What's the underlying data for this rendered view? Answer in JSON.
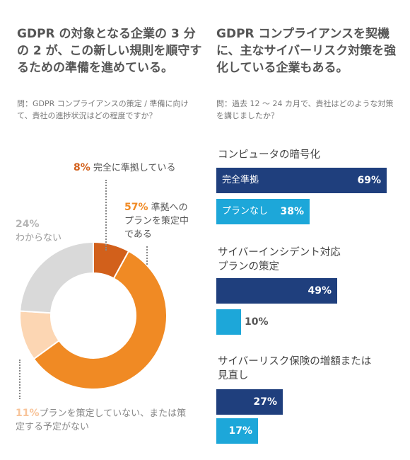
{
  "left": {
    "headline": "GDPR の対象となる企業の 3 分の 2 が、この新しい規則を順守するための準備を進めている。",
    "question": "問：GDPR コンプライアンスの策定 / 準備に向けて、貴社の進捗状況はどの程度ですか？"
  },
  "right": {
    "headline": "GDPR コンプライアンスを契機に、主なサイバーリスク対策を強化している企業もある。",
    "question": "問：過去 12 ～ 24 カ月で、貴社はどのような対策を講じましたか？"
  },
  "chart_data": [
    {
      "type": "pie",
      "title": "",
      "slices": [
        {
          "label": "完全に準拠している",
          "value": 8,
          "pct_label": "8%",
          "color": "#d2601b"
        },
        {
          "label": "準拠へのプランを策定中である",
          "value": 57,
          "pct_label": "57%",
          "color": "#f08a24"
        },
        {
          "label": "プランを策定していない、または策定する予定がない",
          "value": 11,
          "pct_label": "11%",
          "color": "#fcd6b3"
        },
        {
          "label": "わからない",
          "value": 24,
          "pct_label": "24%",
          "color": "#d9d9d9"
        }
      ]
    },
    {
      "type": "bar",
      "title": "",
      "xlim": [
        0,
        70
      ],
      "categories": [
        {
          "name": "コンピュータの暗号化",
          "bars": [
            {
              "label": "完全準拠",
              "value": 69,
              "value_label": "69%",
              "color": "#1f3f7d"
            },
            {
              "label": "プランなし",
              "value": 38,
              "value_label": "38%",
              "color": "#1da7d9"
            }
          ]
        },
        {
          "name": "サイバーインシデント対応プランの策定",
          "bars": [
            {
              "label": "",
              "value": 49,
              "value_label": "49%",
              "color": "#1f3f7d"
            },
            {
              "label": "",
              "value": 10,
              "value_label": "10%",
              "color": "#1da7d9"
            }
          ]
        },
        {
          "name": "サイバーリスク保険の増額または見直し",
          "bars": [
            {
              "label": "",
              "value": 27,
              "value_label": "27%",
              "color": "#1f3f7d"
            },
            {
              "label": "",
              "value": 17,
              "value_label": "17%",
              "color": "#1da7d9"
            }
          ]
        }
      ]
    }
  ]
}
